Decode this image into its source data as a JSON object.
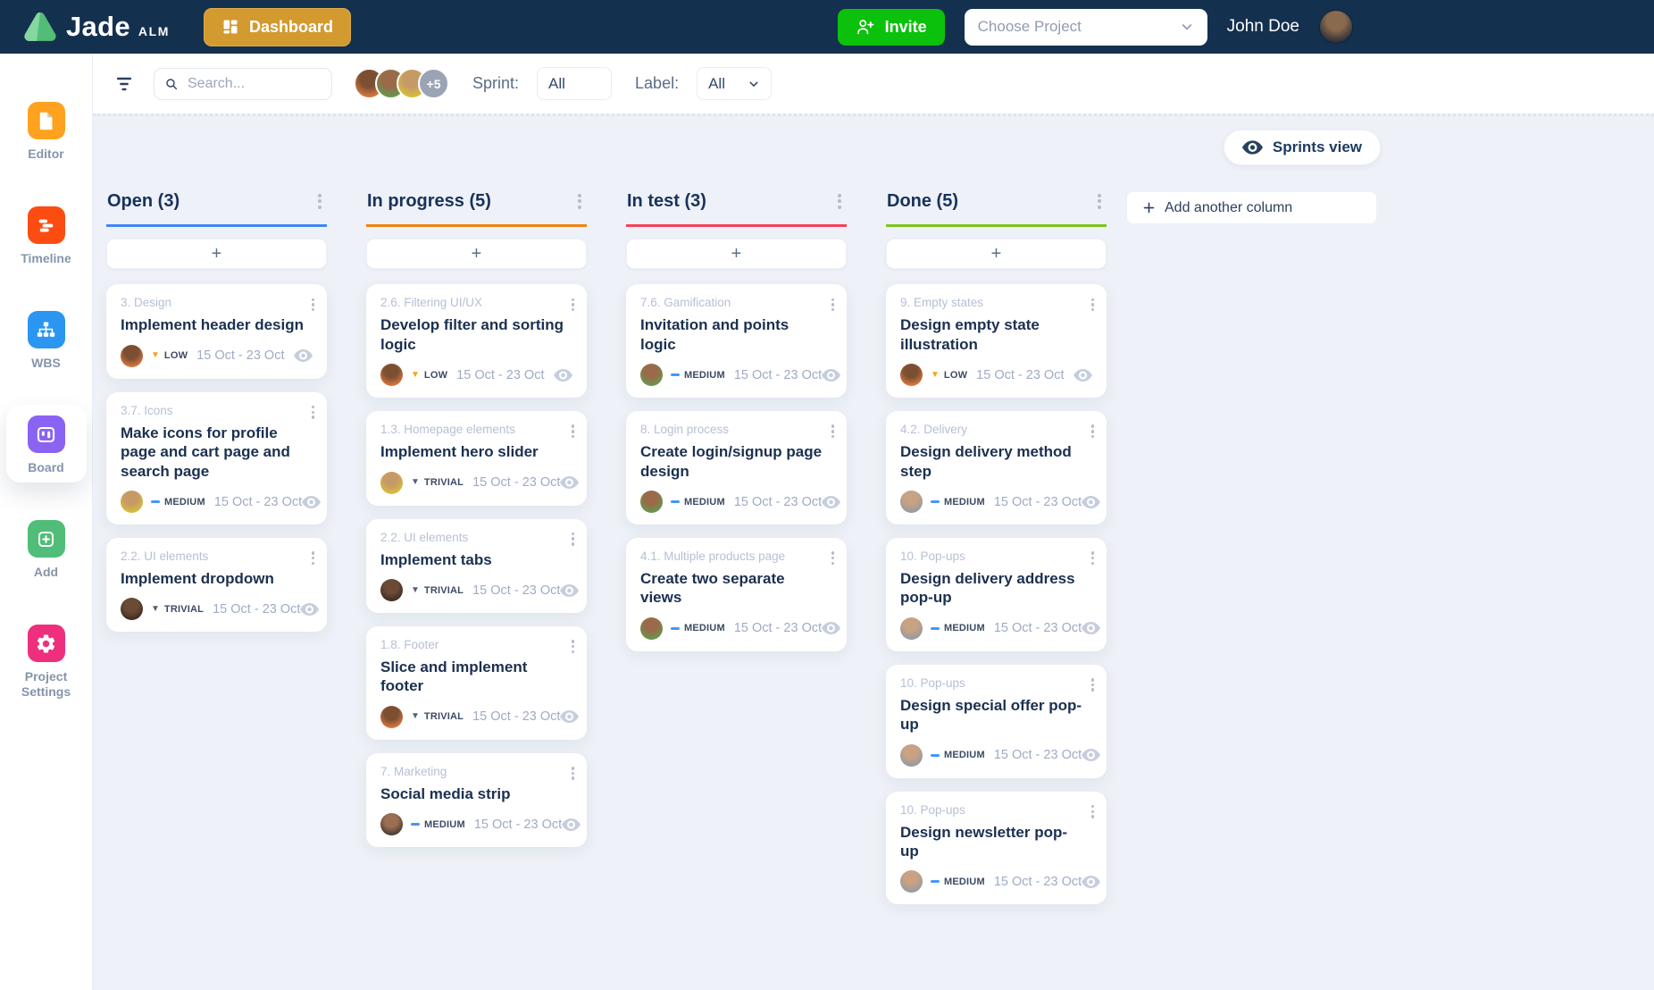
{
  "navbar": {
    "brand": "Jade",
    "brand_suffix": "ALM",
    "dashboard_label": "Dashboard",
    "invite_label": "Invite",
    "project_placeholder": "Choose Project",
    "user_name": "John Doe"
  },
  "filter_bar": {
    "search_placeholder": "Search...",
    "avatars": [
      0,
      3,
      1
    ],
    "overflow_count": "+5",
    "sprint_label": "Sprint:",
    "sprint_value": "All",
    "label_label": "Label:",
    "label_value": "All"
  },
  "sidebar": {
    "items": [
      {
        "label": "Editor",
        "icon": "editor-icon",
        "color": "#ffa21f",
        "active": false
      },
      {
        "label": "Timeline",
        "icon": "timeline-icon",
        "color": "#fc4c12",
        "active": false
      },
      {
        "label": "WBS",
        "icon": "wbs-icon",
        "color": "#2b96f1",
        "active": false
      },
      {
        "label": "Board",
        "icon": "board-icon",
        "color": "#8a63f3",
        "active": true
      },
      {
        "label": "Add",
        "icon": "add-icon",
        "color": "#50bd78",
        "active": false
      },
      {
        "label": "Project Settings",
        "icon": "settings-gear-icon",
        "color": "#ed2f7d",
        "active": false
      }
    ]
  },
  "priorities": {
    "LOW": {
      "label": "LOW",
      "color": "#f5a31d",
      "shape": "triangle"
    },
    "MEDIUM": {
      "label": "MEDIUM",
      "color": "#4596f7",
      "shape": "dash"
    },
    "TRIVIAL": {
      "label": "TRIVIAL",
      "color": "#55607a",
      "shape": "triangle"
    }
  },
  "board": {
    "sprints_view_label": "Sprints view",
    "add_another_column_label": "Add another column",
    "add_card_label": "+",
    "columns": [
      {
        "title": "Open (3)",
        "accent": "#4186f0",
        "cards": [
          {
            "category": "3. Design",
            "title": "Implement header design",
            "priority": "LOW",
            "dates": "15 Oct - 23 Oct",
            "avatar": 0
          },
          {
            "category": "3.7. Icons",
            "title": "Make icons for profile page and cart page and search page",
            "priority": "MEDIUM",
            "dates": "15 Oct - 23 Oct",
            "avatar": 1
          },
          {
            "category": "2.2. UI elements",
            "title": "Implement dropdown",
            "priority": "TRIVIAL",
            "dates": "15 Oct - 23 Oct",
            "avatar": 2
          }
        ]
      },
      {
        "title": "In progress (5)",
        "accent": "#f0820f",
        "cards": [
          {
            "category": "2.6. Filtering UI/UX",
            "title": "Develop filter and sorting logic",
            "priority": "LOW",
            "dates": "15 Oct - 23 Oct",
            "avatar": 0
          },
          {
            "category": "1.3. Homepage elements",
            "title": "Implement hero slider",
            "priority": "TRIVIAL",
            "dates": "15 Oct - 23 Oct",
            "avatar": 1
          },
          {
            "category": "2.2. UI elements",
            "title": "Implement tabs",
            "priority": "TRIVIAL",
            "dates": "15 Oct - 23 Oct",
            "avatar": 2
          },
          {
            "category": "1.8. Footer",
            "title": "Slice and implement footer",
            "priority": "TRIVIAL",
            "dates": "15 Oct - 23 Oct",
            "avatar": 0
          },
          {
            "category": "7. Marketing",
            "title": "Social media strip",
            "priority": "MEDIUM",
            "dates": "15 Oct - 23 Oct",
            "avatar": 5
          }
        ]
      },
      {
        "title": "In test (3)",
        "accent": "#f4435b",
        "cards": [
          {
            "category": "7.6. Gamification",
            "title": "Invitation and points logic",
            "priority": "MEDIUM",
            "dates": "15 Oct - 23 Oct",
            "avatar": 3
          },
          {
            "category": "8. Login process",
            "title": "Create login/signup page design",
            "priority": "MEDIUM",
            "dates": "15 Oct - 23 Oct",
            "avatar": 3
          },
          {
            "category": "4.1. Multiple products page",
            "title": "Create two separate views",
            "priority": "MEDIUM",
            "dates": "15 Oct - 23 Oct",
            "avatar": 3
          }
        ]
      },
      {
        "title": "Done (5)",
        "accent": "#7ec41f",
        "cards": [
          {
            "category": "9. Empty states",
            "title": "Design empty state illustration",
            "priority": "LOW",
            "dates": "15 Oct - 23 Oct",
            "avatar": 0
          },
          {
            "category": "4.2. Delivery",
            "title": "Design delivery method step",
            "priority": "MEDIUM",
            "dates": "15 Oct - 23 Oct",
            "avatar": 4
          },
          {
            "category": "10. Pop-ups",
            "title": "Design delivery address pop-up",
            "priority": "MEDIUM",
            "dates": "15 Oct - 23 Oct",
            "avatar": 4
          },
          {
            "category": "10. Pop-ups",
            "title": "Design special offer pop-up",
            "priority": "MEDIUM",
            "dates": "15 Oct - 23 Oct",
            "avatar": 4
          },
          {
            "category": "10. Pop-ups",
            "title": "Design newsletter pop-up",
            "priority": "MEDIUM",
            "dates": "15 Oct - 23 Oct",
            "avatar": 4
          }
        ]
      }
    ]
  },
  "colors": {
    "navbar_bg": "#14304f",
    "board_bg": "#eef1f7",
    "dashboard_button": "#d39a30",
    "invite_button": "#0bc10b"
  }
}
